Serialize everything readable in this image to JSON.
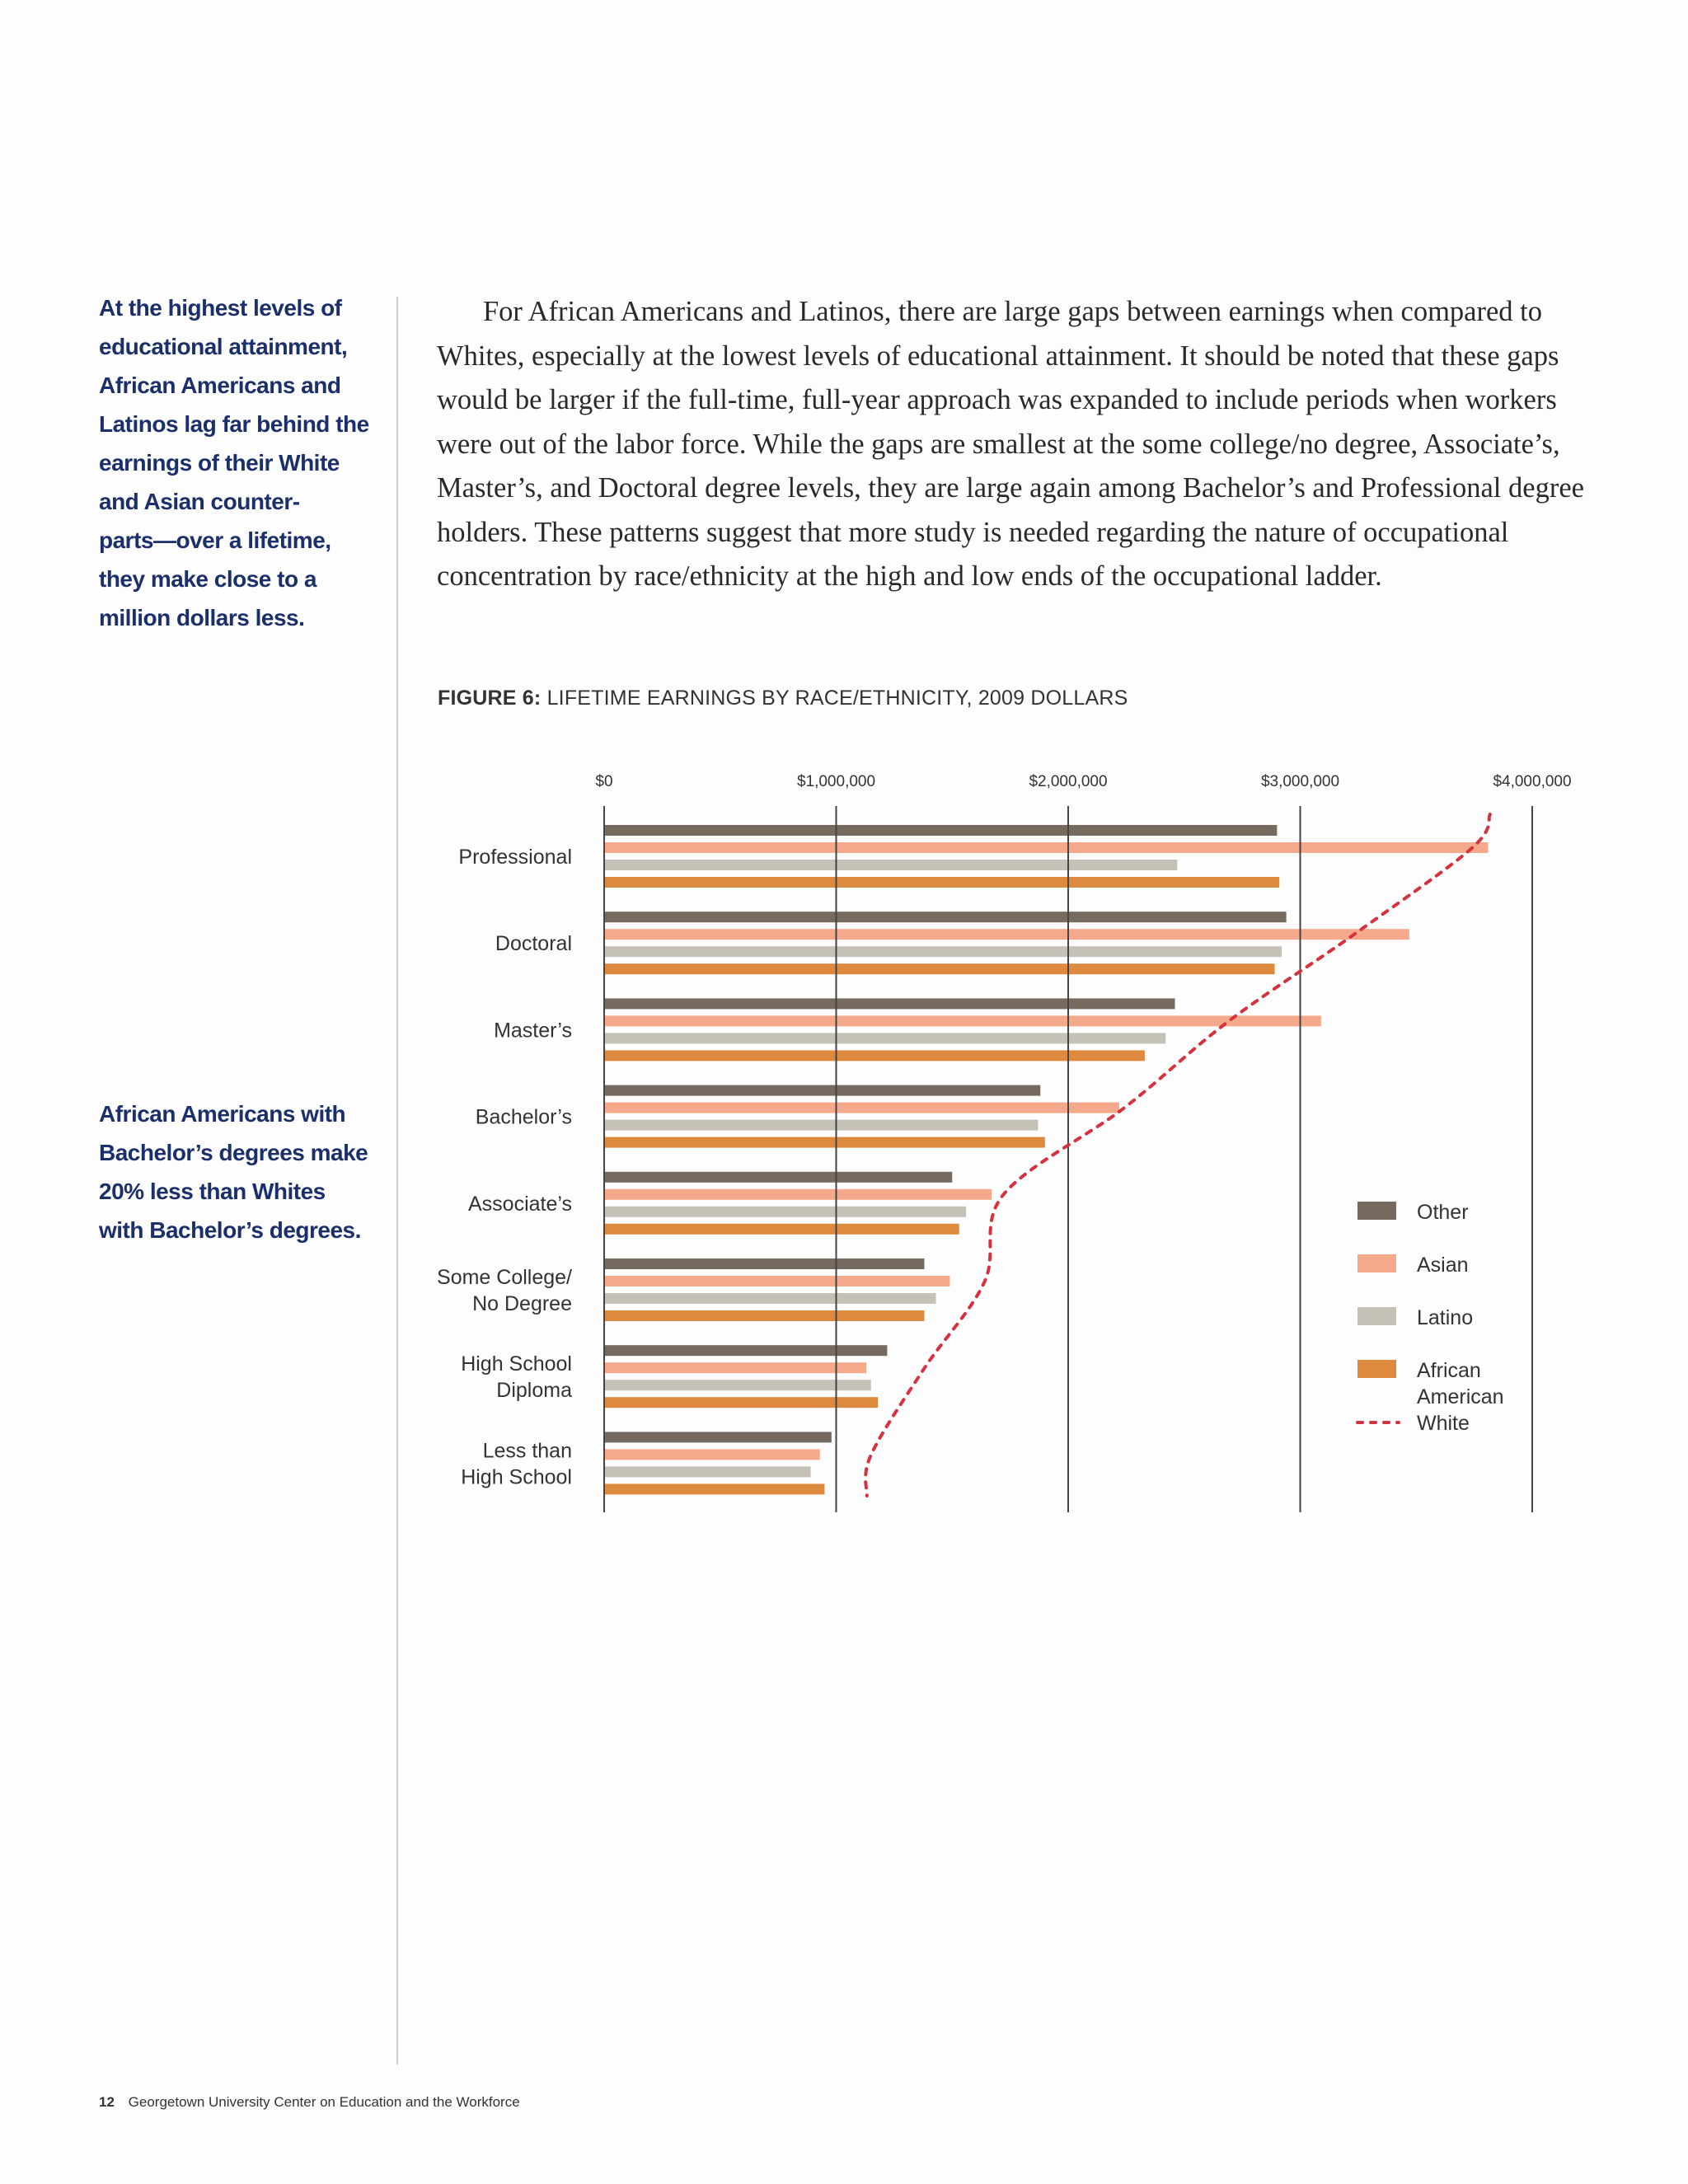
{
  "sidebar": {
    "pull_quote_1": "At the highest levels of educational attainment, African Americans and Latinos lag far behind the earnings of their White and Asian counter-parts—over a lifetime, they make close to a million dollars less.",
    "pull_quote_1_lines": [
      "At the highest levels of",
      "educational attainment,",
      "African Americans and",
      "Latinos lag far behind the",
      "earnings of their White",
      "and Asian counter-",
      "parts—over a lifetime,",
      "they make close to a",
      "million dollars less."
    ],
    "pull_quote_2_lines": [
      "African Americans with",
      "Bachelor’s degrees make",
      "20% less than Whites",
      "with Bachelor’s degrees."
    ]
  },
  "body": {
    "paragraph": "For African Americans and Latinos, there are large gaps between earnings when compared to Whites, especially at the lowest levels of educational attainment. It should be noted that these gaps would be larger if the full-time, full-year approach was expanded to include periods when workers were out of the labor force. While the gaps are smallest at the some college/no degree, Associate’s, Master’s, and Doctoral degree levels, they are large again among Bachelor’s and Professional degree holders. These patterns suggest that more study is needed regarding the nature of occupational concentration by race/ethnicity at the high and low ends of the occupational ladder."
  },
  "figure": {
    "label": "FIGURE 6:",
    "title": "LIFETIME EARNINGS BY RACE/ETHNICITY, 2009 DOLLARS"
  },
  "chart_data": {
    "type": "bar",
    "orientation": "horizontal",
    "xlim": [
      0,
      4000000
    ],
    "x_ticks": [
      "$0",
      "$1,000,000",
      "$2,000,000",
      "$3,000,000",
      "$4,000,000"
    ],
    "x_tick_values": [
      0,
      1000000,
      2000000,
      3000000,
      4000000
    ],
    "grid": true,
    "legend_position": "right",
    "categories": [
      [
        "Professional"
      ],
      [
        "Doctoral"
      ],
      [
        "Master’s"
      ],
      [
        "Bachelor’s"
      ],
      [
        "Associate’s"
      ],
      [
        "Some College/",
        "No Degree"
      ],
      [
        "High School",
        "Diploma"
      ],
      [
        "Less than",
        "High School"
      ]
    ],
    "series": [
      {
        "name": "Other",
        "color": "#766a5e",
        "values": [
          2900000,
          2940000,
          2460000,
          1880000,
          1500000,
          1380000,
          1220000,
          980000
        ]
      },
      {
        "name": "Asian",
        "color": "#f4a98a",
        "values": [
          3810000,
          3470000,
          3090000,
          2220000,
          1670000,
          1490000,
          1130000,
          930000
        ]
      },
      {
        "name": "Latino",
        "color": "#c6c1b6",
        "values": [
          2470000,
          2920000,
          2420000,
          1870000,
          1560000,
          1430000,
          1150000,
          890000
        ]
      },
      {
        "name": "African American",
        "color": "#de8a3e",
        "values": [
          2910000,
          2890000,
          2330000,
          1900000,
          1530000,
          1380000,
          1180000,
          950000
        ]
      },
      {
        "name": "White",
        "color": "#d6313f",
        "style": "dotted-line",
        "values": [
          3740000,
          3230000,
          2690000,
          2240000,
          1720000,
          1640000,
          1380000,
          1150000
        ]
      }
    ],
    "legend": [
      {
        "label": [
          "Other"
        ],
        "color": "#766a5e",
        "kind": "swatch"
      },
      {
        "label": [
          "Asian"
        ],
        "color": "#f4a98a",
        "kind": "swatch"
      },
      {
        "label": [
          "Latino"
        ],
        "color": "#c6c1b6",
        "kind": "swatch"
      },
      {
        "label": [
          "African",
          "American"
        ],
        "color": "#de8a3e",
        "kind": "swatch"
      },
      {
        "label": [
          "White"
        ],
        "color": "#d6313f",
        "kind": "dotted"
      }
    ]
  },
  "footer": {
    "page_number": "12",
    "publisher": "Georgetown University Center on Education and the Workforce"
  }
}
